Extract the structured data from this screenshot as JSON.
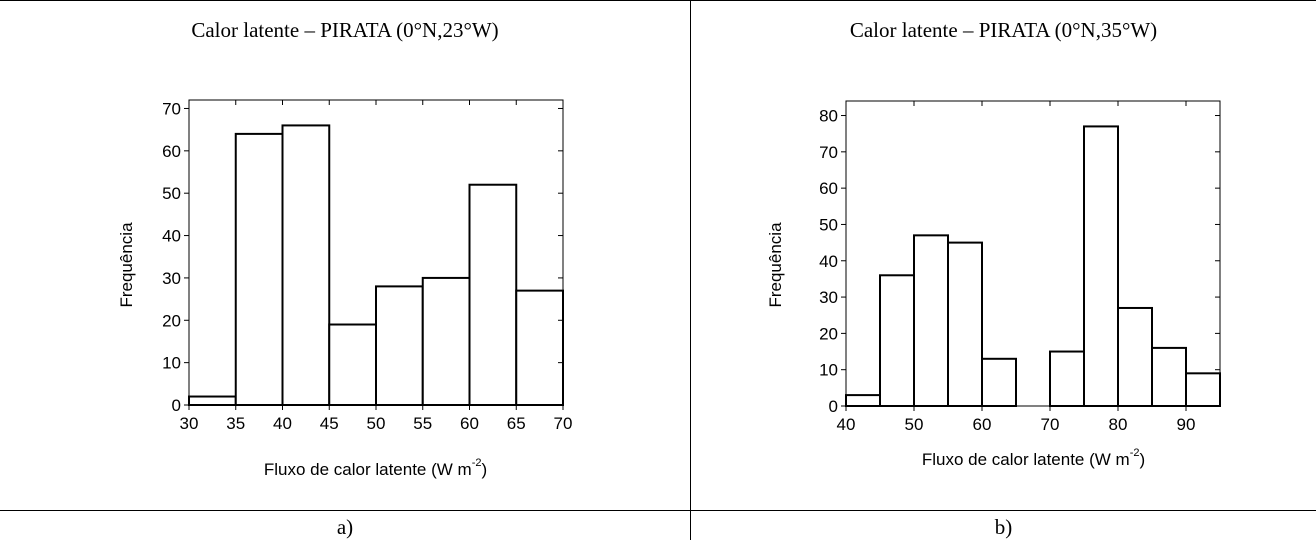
{
  "panels": [
    {
      "title": "Calor latente – PIRATA (0°N,23°W)",
      "caption": "a)"
    },
    {
      "title": "Calor latente – PIRATA (0°N,35°W)",
      "caption": "b)"
    }
  ],
  "chart_data": [
    {
      "type": "bar",
      "title": "Calor latente – PIRATA (0°N,23°W)",
      "xlabel": "Fluxo de calor latente (W m",
      "xlabel_sup": "-2",
      "xlabel_end": ")",
      "ylabel": "Frequência",
      "xlim": [
        30,
        70
      ],
      "ylim": [
        0,
        72
      ],
      "xticks": [
        30,
        35,
        40,
        45,
        50,
        55,
        60,
        65,
        70
      ],
      "yticks": [
        0,
        10,
        20,
        30,
        40,
        50,
        60,
        70
      ],
      "bins": [
        [
          30,
          35
        ],
        [
          35,
          40
        ],
        [
          40,
          45
        ],
        [
          45,
          50
        ],
        [
          50,
          55
        ],
        [
          55,
          60
        ],
        [
          60,
          65
        ],
        [
          65,
          70
        ]
      ],
      "values": [
        2,
        64,
        66,
        19,
        28,
        30,
        52,
        27
      ]
    },
    {
      "type": "bar",
      "title": "Calor latente – PIRATA (0°N,35°W)",
      "xlabel": "Fluxo de calor latente (W m",
      "xlabel_sup": "-2",
      "xlabel_end": ")",
      "ylabel": "Frequência",
      "xlim": [
        40,
        95
      ],
      "ylim": [
        0,
        84
      ],
      "xticks": [
        40,
        50,
        60,
        70,
        80,
        90
      ],
      "yticks": [
        0,
        10,
        20,
        30,
        40,
        50,
        60,
        70,
        80
      ],
      "bins": [
        [
          40,
          45
        ],
        [
          45,
          50
        ],
        [
          50,
          55
        ],
        [
          55,
          60
        ],
        [
          60,
          65
        ],
        [
          65,
          70
        ],
        [
          70,
          75
        ],
        [
          75,
          80
        ],
        [
          80,
          85
        ],
        [
          85,
          90
        ],
        [
          90,
          95
        ]
      ],
      "values": [
        3,
        36,
        47,
        45,
        13,
        0,
        15,
        77,
        27,
        16,
        9
      ]
    }
  ]
}
